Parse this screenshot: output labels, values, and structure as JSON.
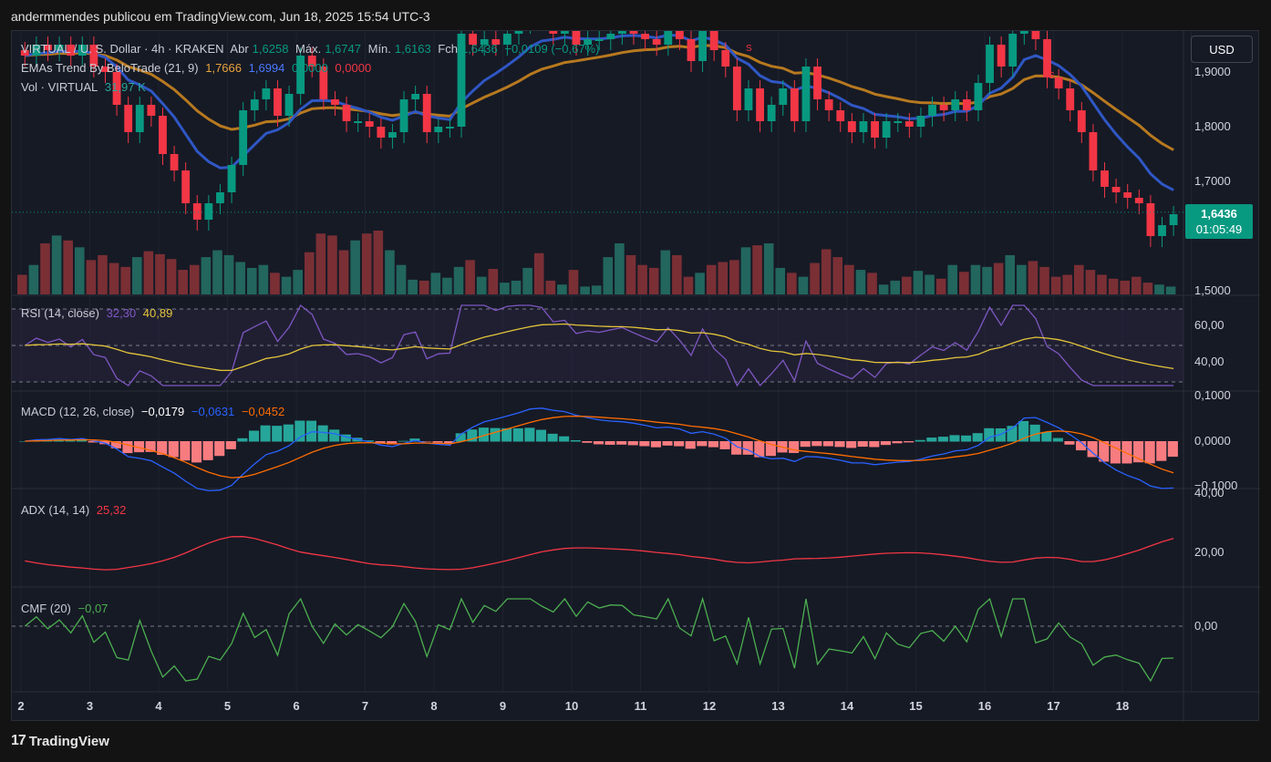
{
  "header": "andermmendes publicou em TradingView.com, Jun 18, 2025 15:54 UTC-3",
  "footer": {
    "logo_mark": "17",
    "brand": "TradingView"
  },
  "currency_button": "USD",
  "price_tag": {
    "price": "1,6436",
    "countdown": "01:05:49"
  },
  "colors": {
    "bg": "#161a25",
    "up": "#089981",
    "down": "#f23645",
    "ema_fast": "#2f57c4",
    "ema_slow": "#b7791f",
    "rsi": "#7e57c2",
    "rsi_ma": "#e3c53a",
    "macd": "#2962ff",
    "signal": "#ff6d00",
    "adx": "#f23645",
    "cmf": "#4caf50"
  },
  "legend": {
    "main": {
      "symbol": "VIRTUAL / U. S. Dollar · 4h · KRAKEN",
      "o_label": "Abr",
      "o": "1,6258",
      "h_label": "Máx.",
      "h": "1,6747",
      "l_label": "Mín.",
      "l": "1,6163",
      "c_label": "Fch",
      "c": "1,6436",
      "chg": "−0,0109 (−0,67%)"
    },
    "ema": {
      "label": "EMAs Trend By BeloTrade (21, 9)",
      "v1": "1,7666",
      "v2": "1,6994",
      "v3": "0,0000",
      "v4": "0,0000"
    },
    "vol": {
      "label": "Vol · VIRTUAL",
      "v": "31,97 K"
    },
    "rsi": {
      "label": "RSI (14, close)",
      "v1": "32,30",
      "v2": "40,89"
    },
    "macd": {
      "label": "MACD (12, 26, close)",
      "v1": "−0,0179",
      "v2": "−0,0631",
      "v3": "−0,0452"
    },
    "adx": {
      "label": "ADX (14, 14)",
      "v": "25,32"
    },
    "cmf": {
      "label": "CMF (20)",
      "v": "−0,07"
    }
  },
  "chart_data": [
    {
      "type": "candlestick",
      "title": "VIRTUAL / U. S. Dollar · 4h · KRAKEN",
      "x_ticks": [
        "2",
        "3",
        "4",
        "5",
        "6",
        "7",
        "8",
        "9",
        "10",
        "11",
        "12",
        "13",
        "14",
        "15",
        "16",
        "17",
        "18"
      ],
      "y_ticks": [
        "1,9000",
        "1,8000",
        "1,7000",
        "1,5000"
      ],
      "ylim": [
        1.5,
        1.95
      ],
      "signal_markers": [
        "S",
        "S"
      ],
      "closes": [
        1.93,
        1.95,
        1.94,
        1.95,
        1.93,
        1.95,
        1.91,
        1.9,
        1.84,
        1.79,
        1.84,
        1.82,
        1.75,
        1.72,
        1.66,
        1.63,
        1.66,
        1.68,
        1.73,
        1.83,
        1.85,
        1.87,
        1.82,
        1.86,
        1.93,
        1.91,
        1.85,
        1.84,
        1.81,
        1.81,
        1.8,
        1.78,
        1.79,
        1.85,
        1.86,
        1.79,
        1.8,
        1.8,
        1.97,
        1.95,
        1.96,
        1.95,
        1.97,
        1.99,
        2.02,
        2.0,
        1.97,
        1.98,
        1.95,
        1.96,
        1.96,
        1.97,
        1.98,
        1.97,
        1.96,
        1.95,
        1.99,
        1.96,
        1.92,
        1.99,
        1.94,
        1.91,
        1.83,
        1.87,
        1.81,
        1.84,
        1.87,
        1.81,
        1.91,
        1.85,
        1.83,
        1.81,
        1.79,
        1.81,
        1.78,
        1.81,
        1.81,
        1.8,
        1.82,
        1.84,
        1.83,
        1.85,
        1.83,
        1.88,
        1.95,
        1.91,
        1.97,
        2.05,
        1.96,
        1.89,
        1.87,
        1.83,
        1.79,
        1.72,
        1.69,
        1.68,
        1.67,
        1.66,
        1.6,
        1.62,
        1.64
      ],
      "ema_fast_last": 1.6994,
      "ema_slow_last": 1.7666
    },
    {
      "type": "bar",
      "title": "Vol · VIRTUAL",
      "last_value": "31,97 K",
      "values": [
        20,
        30,
        52,
        60,
        55,
        48,
        35,
        40,
        32,
        28,
        38,
        44,
        41,
        36,
        25,
        30,
        38,
        45,
        40,
        33,
        27,
        30,
        22,
        18,
        25,
        43,
        62,
        60,
        45,
        55,
        62,
        65,
        45,
        30,
        15,
        14,
        22,
        17,
        28,
        35,
        18,
        26,
        12,
        14,
        27,
        42,
        14,
        10,
        25,
        8,
        9,
        38,
        52,
        40,
        30,
        27,
        45,
        40,
        18,
        22,
        30,
        33,
        35,
        48,
        50,
        52,
        27,
        22,
        18,
        32,
        46,
        38,
        30,
        25,
        22,
        10,
        14,
        18,
        24,
        20,
        16,
        30,
        23,
        30,
        28,
        32,
        40,
        30,
        34,
        28,
        18,
        20,
        30,
        25,
        20,
        16,
        14,
        18,
        12,
        10,
        8
      ]
    },
    {
      "type": "line",
      "title": "RSI (14, close)",
      "y_ticks": [
        "60,00",
        "40,00"
      ],
      "last_rsi": 32.3,
      "last_ma": 40.89
    },
    {
      "type": "line",
      "title": "MACD (12, 26, close)",
      "y_ticks": [
        "0,1000",
        "0,0000",
        "−0,1000"
      ],
      "macd": -0.0631,
      "signal": -0.0452,
      "hist": -0.0179
    },
    {
      "type": "line",
      "title": "ADX (14, 14)",
      "y_ticks": [
        "40,00",
        "20,00"
      ],
      "last": 25.32
    },
    {
      "type": "line",
      "title": "CMF (20)",
      "y_ticks": [
        "0,00"
      ],
      "last": -0.07
    }
  ]
}
